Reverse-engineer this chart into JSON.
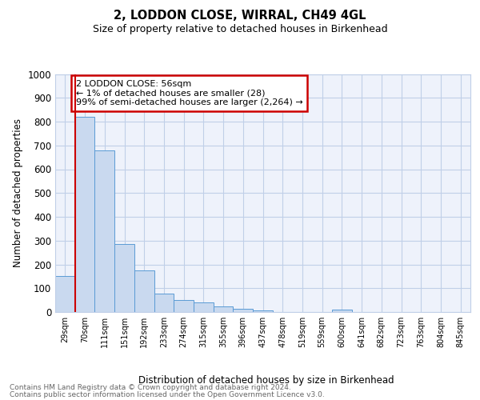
{
  "title1": "2, LODDON CLOSE, WIRRAL, CH49 4GL",
  "title2": "Size of property relative to detached houses in Birkenhead",
  "xlabel": "Distribution of detached houses by size in Birkenhead",
  "ylabel": "Number of detached properties",
  "bar_labels": [
    "29sqm",
    "70sqm",
    "111sqm",
    "151sqm",
    "192sqm",
    "233sqm",
    "274sqm",
    "315sqm",
    "355sqm",
    "396sqm",
    "437sqm",
    "478sqm",
    "519sqm",
    "559sqm",
    "600sqm",
    "641sqm",
    "682sqm",
    "723sqm",
    "763sqm",
    "804sqm",
    "845sqm"
  ],
  "bar_values": [
    150,
    820,
    680,
    285,
    175,
    78,
    50,
    42,
    22,
    12,
    8,
    0,
    0,
    0,
    10,
    0,
    0,
    0,
    0,
    0,
    0
  ],
  "bar_color": "#c9d9ef",
  "bar_edge_color": "#5b9bd5",
  "ylim": [
    0,
    1000
  ],
  "yticks": [
    0,
    100,
    200,
    300,
    400,
    500,
    600,
    700,
    800,
    900,
    1000
  ],
  "grid_color": "#c0cfe8",
  "bg_color": "#eef2fb",
  "annotation_text": "2 LODDON CLOSE: 56sqm\n← 1% of detached houses are smaller (28)\n99% of semi-detached houses are larger (2,264) →",
  "annotation_box_color": "#ffffff",
  "annotation_box_edge": "#cc0000",
  "marker_color": "#cc0000",
  "footer1": "Contains HM Land Registry data © Crown copyright and database right 2024.",
  "footer2": "Contains public sector information licensed under the Open Government Licence v3.0."
}
